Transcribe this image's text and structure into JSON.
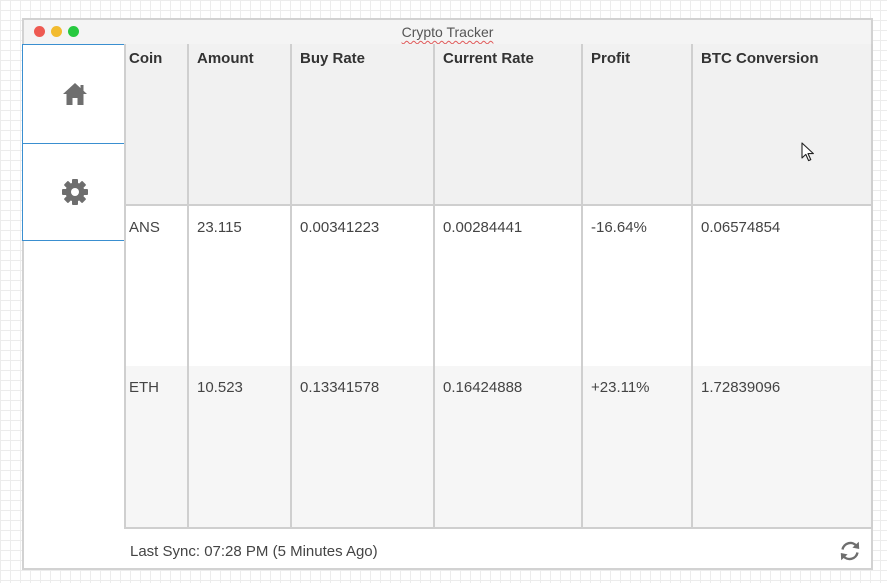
{
  "window": {
    "title": "Crypto Tracker"
  },
  "sidebar": {
    "items": [
      {
        "id": "home",
        "icon": "home-icon"
      },
      {
        "id": "settings",
        "icon": "gear-icon"
      }
    ]
  },
  "table": {
    "columns": [
      "Coin",
      "Amount",
      "Buy Rate",
      "Current Rate",
      "Profit",
      "BTC Conversion"
    ],
    "rows": [
      [
        "ANS",
        "23.115",
        "0.00341223",
        "0.00284441",
        "-16.64%",
        "0.06574854"
      ],
      [
        "ETH",
        "10.523",
        "0.13341578",
        "0.16424888",
        "+23.11%",
        "1.72839096"
      ]
    ]
  },
  "footer": {
    "last_sync": "Last Sync: 07:28 PM (5 Minutes Ago)",
    "refresh_icon": "refresh-icon"
  },
  "colors": {
    "accent": "#3a8fd0",
    "icon": "#6e6e6e",
    "close": "#ee5a52",
    "minimize": "#f2bb2f",
    "maximize": "#27c93f"
  }
}
